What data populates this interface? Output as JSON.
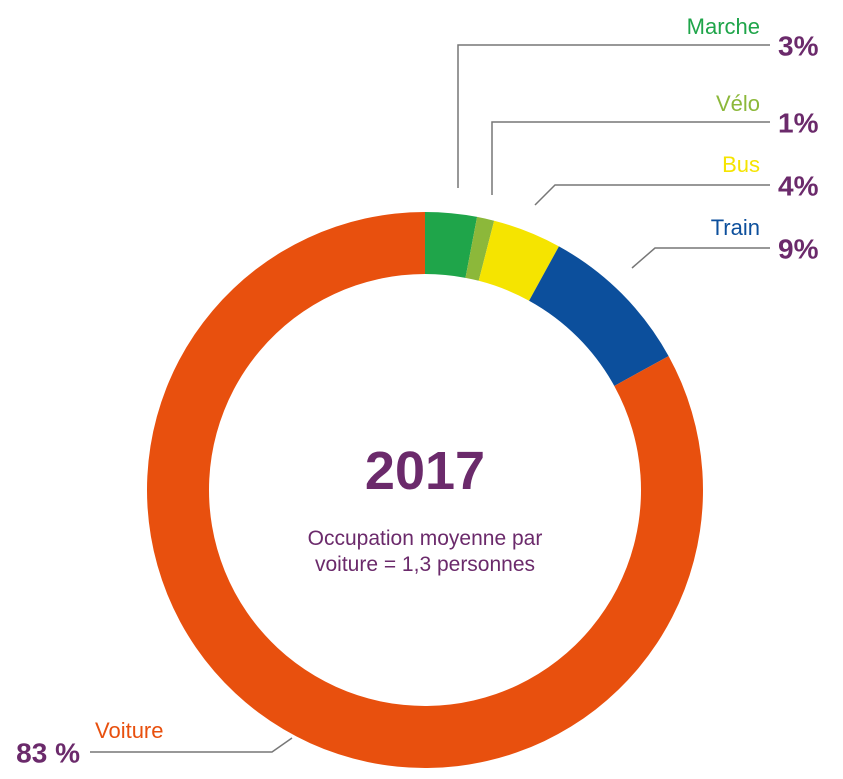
{
  "chart_data": {
    "type": "donut",
    "title": "2017",
    "subtitle": "Occupation moyenne par voiture = 1,3 personnes",
    "categories": [
      "Marche",
      "Vélo",
      "Bus",
      "Train",
      "Voiture"
    ],
    "values": [
      3,
      1,
      4,
      9,
      83
    ],
    "value_labels": [
      "3%",
      "1%",
      "4%",
      "9%",
      "83 %"
    ],
    "colors": [
      "#1fa54a",
      "#8cb83a",
      "#f5e400",
      "#0c4f9c",
      "#e8500e"
    ]
  }
}
